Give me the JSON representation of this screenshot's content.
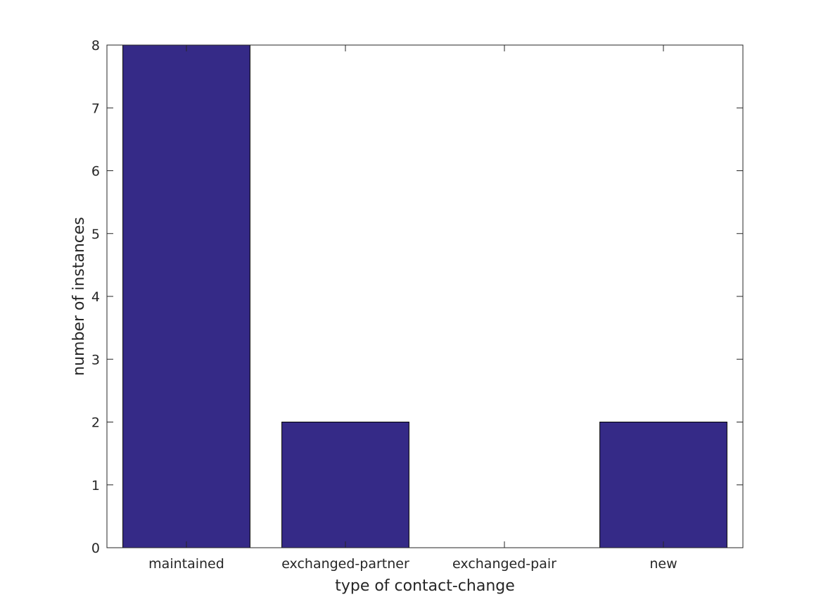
{
  "chart_data": {
    "type": "bar",
    "title": "",
    "xlabel": "type of contact-change",
    "ylabel": "number of instances",
    "categories": [
      "maintained",
      "exchanged-partner",
      "exchanged-pair",
      "new"
    ],
    "values": [
      8,
      2,
      0,
      2
    ],
    "ylim": [
      0,
      8
    ],
    "yticks": [
      "0",
      "1",
      "2",
      "3",
      "4",
      "5",
      "6",
      "7",
      "8"
    ],
    "grid": false,
    "legend": "none",
    "bar_color": "#352a87",
    "axis_color": "#262626"
  }
}
